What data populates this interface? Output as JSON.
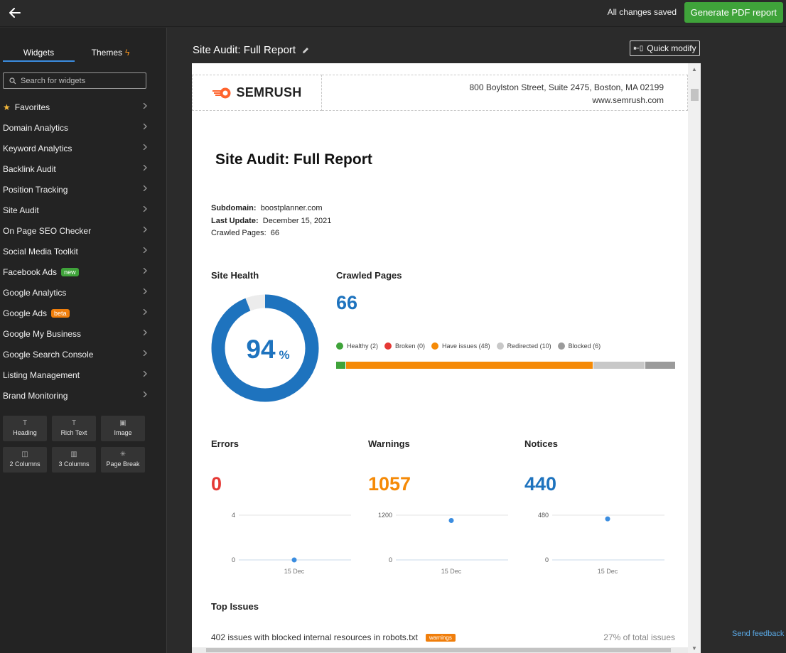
{
  "topbar": {
    "saved_text": "All changes saved",
    "generate_label": "Generate PDF report"
  },
  "sidebar": {
    "tabs": [
      {
        "label": "Widgets"
      },
      {
        "label": "Themes"
      }
    ],
    "search_placeholder": "Search for widgets",
    "items": [
      {
        "label": "Favorites"
      },
      {
        "label": "Domain Analytics"
      },
      {
        "label": "Keyword Analytics"
      },
      {
        "label": "Backlink Audit"
      },
      {
        "label": "Position Tracking"
      },
      {
        "label": "Site Audit"
      },
      {
        "label": "On Page SEO Checker"
      },
      {
        "label": "Social Media Toolkit"
      },
      {
        "label": "Facebook Ads",
        "badge": "new"
      },
      {
        "label": "Google Analytics"
      },
      {
        "label": "Google Ads",
        "badge": "beta"
      },
      {
        "label": "Google My Business"
      },
      {
        "label": "Google Search Console"
      },
      {
        "label": "Listing Management"
      },
      {
        "label": "Brand Monitoring"
      }
    ],
    "blocks": [
      {
        "label": "Heading",
        "icon": "T"
      },
      {
        "label": "Rich Text",
        "icon": "T"
      },
      {
        "label": "Image",
        "icon": "▣"
      },
      {
        "label": "2 Columns",
        "icon": "◫"
      },
      {
        "label": "3 Columns",
        "icon": "▥"
      },
      {
        "label": "Page Break",
        "icon": "✳"
      }
    ]
  },
  "main": {
    "title": "Site Audit: Full Report",
    "quick_modify": "Quick modify"
  },
  "report": {
    "logo_text": "SEMRUSH",
    "address_line1": "800 Boylston Street, Suite 2475, Boston, MA 02199",
    "address_line2": "www.semrush.com",
    "title": "Site Audit: Full Report",
    "meta": {
      "subdomain_label": "Subdomain:",
      "subdomain": "boostplanner.com",
      "update_label": "Last Update:",
      "update": "December 15, 2021",
      "crawled_label": "Crawled Pages:",
      "crawled": "66"
    },
    "site_health": {
      "label": "Site Health",
      "value": "94",
      "unit": "%",
      "fraction": 0.94
    },
    "crawled_pages": {
      "label": "Crawled Pages",
      "value": "66",
      "legend": [
        {
          "label": "Healthy (2)",
          "count": 2,
          "color": "#3fa33a"
        },
        {
          "label": "Broken (0)",
          "count": 0,
          "color": "#e53935"
        },
        {
          "label": "Have issues (48)",
          "count": 48,
          "color": "#f58a07"
        },
        {
          "label": "Redirected (10)",
          "count": 10,
          "color": "#c8c8c8"
        },
        {
          "label": "Blocked (6)",
          "count": 6,
          "color": "#9b9b9b"
        }
      ]
    },
    "metrics": [
      {
        "label": "Errors",
        "value": "0",
        "color": "#e53935",
        "chart": {
          "y_ticks": [
            "4",
            "0"
          ],
          "x_label": "15 Dec",
          "y_max": 4,
          "point": 0
        }
      },
      {
        "label": "Warnings",
        "value": "1057",
        "color": "#f58a07",
        "chart": {
          "y_ticks": [
            "1200",
            "0"
          ],
          "x_label": "15 Dec",
          "y_max": 1200,
          "point": 1057
        }
      },
      {
        "label": "Notices",
        "value": "440",
        "color": "#1e73be",
        "chart": {
          "y_ticks": [
            "480",
            "0"
          ],
          "x_label": "15 Dec",
          "y_max": 480,
          "point": 440
        }
      }
    ],
    "top_issues": {
      "label": "Top Issues",
      "first_issue": {
        "text": "402 issues with blocked internal resources in robots.txt",
        "badge": "warnings",
        "pct": "27% of total issues"
      }
    }
  },
  "feedback": "Send feedback"
}
